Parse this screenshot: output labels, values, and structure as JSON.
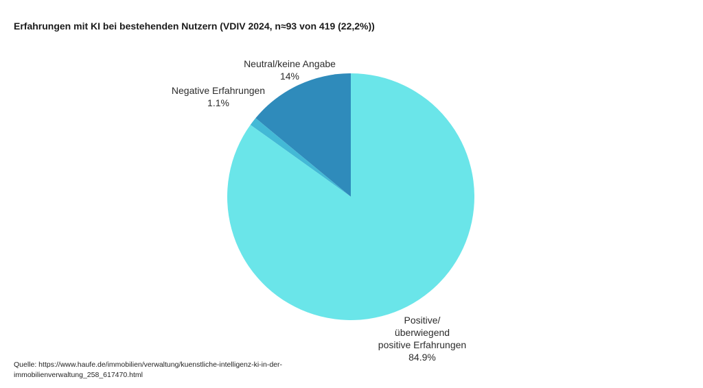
{
  "chart_data": {
    "type": "pie",
    "title": "Erfahrungen mit KI bei bestehenden Nutzern (VDIV 2024, n≈93 von 419 (22,2%))",
    "slices": [
      {
        "label_lines": [
          "Neutral/keine Angabe"
        ],
        "value": 14,
        "value_label": "14%",
        "color": "#2f8bbb"
      },
      {
        "label_lines": [
          "Negative Erfahrungen"
        ],
        "value": 1.1,
        "value_label": "1.1%",
        "color": "#43b9d6"
      },
      {
        "label_lines": [
          "Positive/",
          "überwiegend",
          "positive Erfahrungen"
        ],
        "value": 84.9,
        "value_label": "84.9%",
        "color": "#6ae5e9"
      }
    ],
    "start_angle": "12 o'clock",
    "direction": "counterclockwise",
    "legend": "none"
  },
  "source": "Quelle: https://www.haufe.de/immobilien/verwaltung/kuenstliche-intelligenz-ki-in-der-immobilienverwaltung_258_617470.html"
}
